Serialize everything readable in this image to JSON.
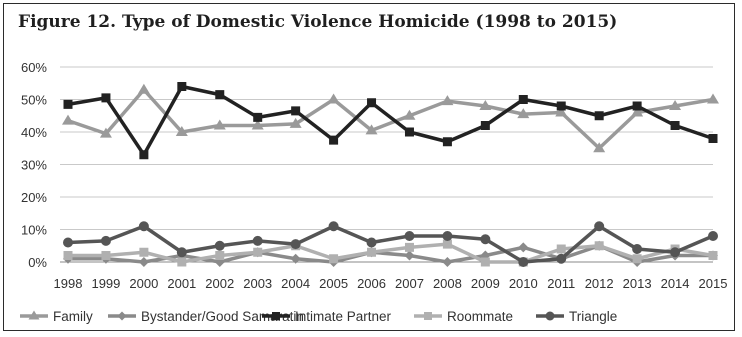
{
  "chart_data": {
    "type": "line",
    "title": "Figure 12. Type of Domestic Violence Homicide (1998 to 2015)",
    "xlabel": "",
    "ylabel": "",
    "ylim": [
      0,
      60
    ],
    "y_ticks": [
      "0%",
      "10%",
      "20%",
      "30%",
      "40%",
      "50%",
      "60%"
    ],
    "grid": true,
    "legend_position": "bottom",
    "categories": [
      "1998",
      "1999",
      "2000",
      "2001",
      "2002",
      "2003",
      "2004",
      "2005",
      "2006",
      "2007",
      "2008",
      "2009",
      "2010",
      "2011",
      "2012",
      "2013",
      "2014",
      "2015"
    ],
    "series": [
      {
        "name": "Family",
        "marker": "triangle",
        "color": "#9a9a9a",
        "values": [
          43.5,
          39.5,
          53,
          40,
          42,
          42,
          42.5,
          50,
          40.5,
          45,
          49.5,
          48,
          45.5,
          46,
          35,
          46,
          48,
          50
        ]
      },
      {
        "name": "Bystander/Good Samaratin",
        "marker": "diamond",
        "color": "#8a8a8a",
        "values": [
          1,
          1,
          0,
          2,
          0,
          3,
          1,
          0,
          3,
          2,
          0,
          2,
          4.5,
          1,
          5,
          0,
          2,
          2
        ]
      },
      {
        "name": "Intimate Partner",
        "marker": "square",
        "color": "#222222",
        "values": [
          48.5,
          50.5,
          33,
          54,
          51.5,
          44.5,
          46.5,
          37.5,
          49,
          40,
          37,
          42,
          50,
          48,
          45,
          48,
          42,
          38
        ]
      },
      {
        "name": "Roommate",
        "marker": "square",
        "color": "#b0b0b0",
        "values": [
          2,
          2,
          3,
          0,
          2,
          3,
          5,
          1,
          3,
          4.5,
          5.5,
          0,
          0,
          4,
          5,
          1,
          4,
          2
        ]
      },
      {
        "name": "Triangle",
        "marker": "circle",
        "color": "#555555",
        "values": [
          6,
          6.5,
          11,
          3,
          5,
          6.5,
          5.5,
          11,
          6,
          8,
          8,
          7,
          0,
          1,
          11,
          4,
          3,
          8
        ]
      }
    ]
  }
}
